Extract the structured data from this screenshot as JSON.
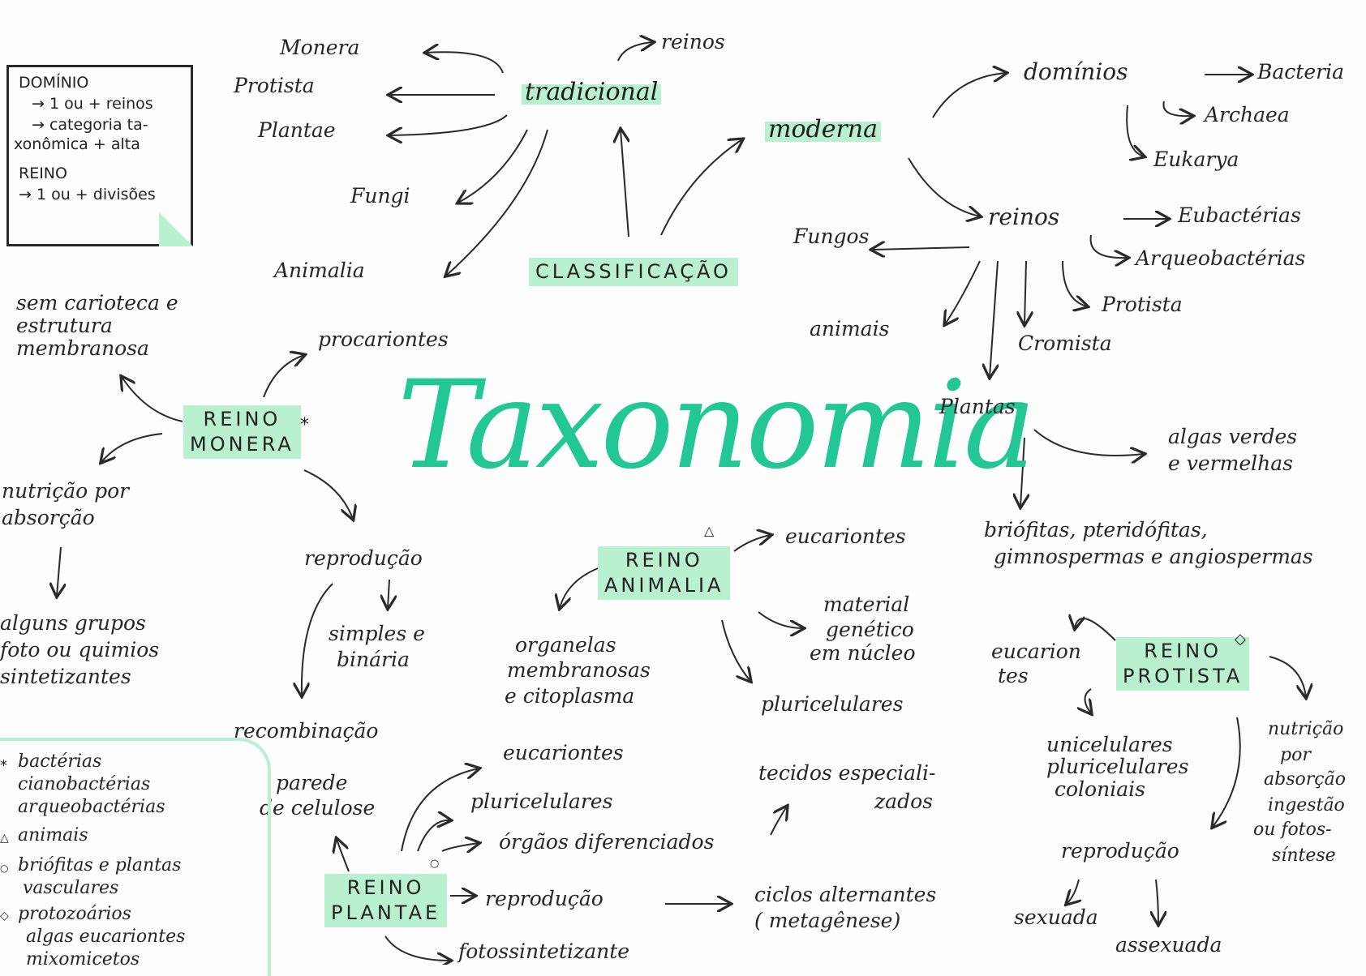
{
  "colors": {
    "accent": "#22c795",
    "highlight": "#b9f0cf",
    "ink": "#2a2a2a"
  },
  "title": "Taxonomia",
  "note": {
    "l1": "DOMÍNIO",
    "l2": "→ 1 ou + reinos",
    "l3": "→ categoria ta-",
    "l4": "xonômica + alta",
    "l5": "REINO",
    "l6": "→ 1 ou + divisões"
  },
  "classificacao": {
    "label": "CLASSIFICAÇÃO",
    "tradicional": "tradicional",
    "reinos": "reinos",
    "monera": "Monera",
    "protista": "Protista",
    "plantae": "Plantae",
    "fungi": "Fungi",
    "animalia": "Animalia",
    "moderna": "moderna",
    "dominios": "domínios",
    "bacteria": "Bacteria",
    "archaea": "Archaea",
    "eukarya": "Eukarya",
    "reinos2": "reinos",
    "eubacterias": "Eubactérias",
    "arqueobacterias": "Arqueobactérias",
    "fungos": "Fungos",
    "animais": "animais",
    "protista2": "Protista",
    "cromista": "Cromista",
    "plantas": "Plantas"
  },
  "plantas": {
    "algas_l1": "algas verdes",
    "algas_l2": "e vermelhas",
    "grupos_l1": "briófitas, pteridófitas,",
    "grupos_l2": "gimnospermas e angiospermas"
  },
  "monera": {
    "label_l1": "REINO",
    "label_l2": "MONERA",
    "mark": "*",
    "procariontes": "procariontes",
    "sem_l1": "sem carioteca e",
    "sem_l2": "estrutura",
    "sem_l3": "membranosa",
    "nutricao_l1": "nutrição por",
    "nutricao_l2": "absorção",
    "alguns_l1": "alguns grupos",
    "alguns_l2": "foto ou quimios",
    "alguns_l3": "sintetizantes",
    "reproducao": "reprodução",
    "simples_l1": "simples e",
    "simples_l2": "binária",
    "recombinacao": "recombinação"
  },
  "animalia": {
    "label_l1": "REINO",
    "label_l2": "ANIMALIA",
    "mark": "△",
    "eucariontes": "eucariontes",
    "organelas_l1": "organelas",
    "organelas_l2": "membranosas",
    "organelas_l3": "e citoplasma",
    "material_l1": "material",
    "material_l2": "genético",
    "material_l3": "em núcleo",
    "pluricelulares": "pluricelulares"
  },
  "plantae": {
    "label_l1": "REINO",
    "label_l2": "PLANTAE",
    "mark": "○",
    "eucariontes": "eucariontes",
    "pluricelulares": "pluricelulares",
    "orgaos": "órgãos diferenciados",
    "tecidos_l1": "tecidos especiali-",
    "tecidos_l2": "zados",
    "parede_l1": "parede",
    "parede_l2": "de celulose",
    "reproducao": "reprodução",
    "ciclos_l1": "ciclos alternantes",
    "ciclos_l2": "( metagênese)",
    "fotossintetizante": "fotossintetizante"
  },
  "protista": {
    "label_l1": "REINO",
    "label_l2": "PROTISTA",
    "mark": "◇",
    "eucariontes_l1": "eucarion",
    "eucariontes_l2": "tes",
    "celulas_l1": "unicelulares",
    "celulas_l2": "pluricelulares",
    "celulas_l3": "coloniais",
    "nutricao_l1": "nutrição",
    "nutricao_l2": "por",
    "nutricao_l3": "absorção",
    "nutricao_l4": "ingestão",
    "nutricao_l5": "ou fotos-",
    "nutricao_l6": "síntese",
    "reproducao": "reprodução",
    "sexuada": "sexuada",
    "assexuada": "assexuada"
  },
  "legend": {
    "sym1": "*",
    "l1": "bactérias",
    "l2": "cianobactérias",
    "l3": "arqueobactérias",
    "sym2": "△",
    "l4": "animais",
    "sym3": "○",
    "l5": "briófitas e plantas",
    "l6": "vasculares",
    "sym4": "◇",
    "l7": "protozoários",
    "l8": "algas eucariontes",
    "l9": "mixomicetos"
  }
}
